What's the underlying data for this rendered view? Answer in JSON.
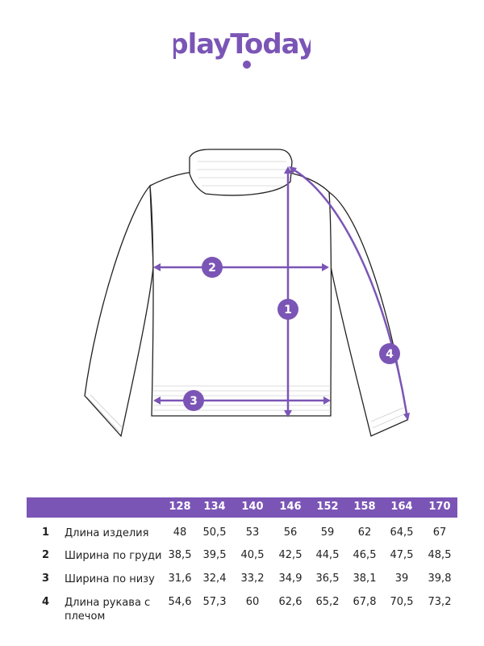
{
  "brand": {
    "logo_text": "playToday",
    "accent_color": "#7b55b6"
  },
  "diagram": {
    "markers": [
      "1",
      "2",
      "3",
      "4"
    ]
  },
  "table": {
    "sizes": [
      "128",
      "134",
      "140",
      "146",
      "152",
      "158",
      "164",
      "170"
    ],
    "rows": [
      {
        "num": "1",
        "label": "Длина изделия",
        "values": [
          "48",
          "50,5",
          "53",
          "56",
          "59",
          "62",
          "64,5",
          "67"
        ]
      },
      {
        "num": "2",
        "label": "Ширина по груди",
        "values": [
          "38,5",
          "39,5",
          "40,5",
          "42,5",
          "44,5",
          "46,5",
          "47,5",
          "48,5"
        ]
      },
      {
        "num": "3",
        "label": "Ширина по низу",
        "values": [
          "31,6",
          "32,4",
          "33,2",
          "34,9",
          "36,5",
          "38,1",
          "39",
          "39,8"
        ]
      },
      {
        "num": "4",
        "label": "Длина рукава с плечом",
        "values": [
          "54,6",
          "57,3",
          "60",
          "62,6",
          "65,2",
          "67,8",
          "70,5",
          "73,2"
        ]
      }
    ]
  }
}
